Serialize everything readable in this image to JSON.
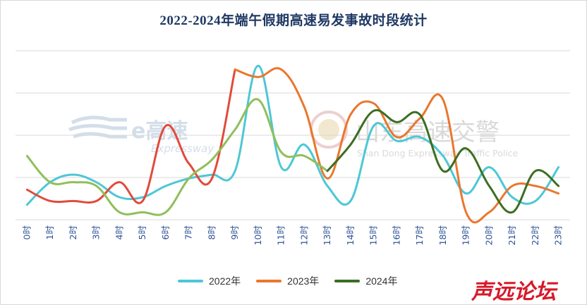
{
  "chart_data": {
    "type": "line",
    "title": "2022-2024年端午假期高速易发事故时段统计",
    "categories": [
      "0时",
      "1时",
      "2时",
      "3时",
      "4时",
      "5时",
      "6时",
      "7时",
      "8时",
      "9时",
      "10时",
      "11时",
      "12时",
      "13时",
      "14时",
      "15时",
      "16时",
      "17时",
      "18时",
      "19时",
      "20时",
      "21时",
      "22时",
      "23时"
    ],
    "series": [
      {
        "name": "2022年",
        "color": "#4dc7d6",
        "values": [
          0.4,
          1.0,
          1.2,
          1.0,
          0.6,
          0.6,
          0.9,
          1.1,
          1.2,
          1.3,
          4.1,
          1.4,
          2.0,
          0.9,
          0.5,
          2.5,
          2.1,
          2.2,
          1.7,
          0.7,
          1.4,
          0.6,
          0.5,
          1.4
        ]
      },
      {
        "name": "2023年",
        "color": "#e24a3b",
        "values": [
          0.8,
          0.5,
          0.5,
          0.5,
          1.0,
          0.5,
          2.5,
          1.5,
          1.1,
          4.0,
          3.8,
          4.0,
          3.0,
          1.1,
          2.8,
          3.1,
          2.2,
          2.7,
          3.2,
          0.2,
          0.2,
          0.9,
          0.9,
          0.7
        ]
      },
      {
        "name": "2024年",
        "color": "#8fbf5a",
        "values": [
          1.7,
          1.0,
          1.0,
          0.9,
          0.2,
          0.2,
          0.2,
          1.1,
          1.6,
          2.4,
          3.2,
          1.8,
          1.7,
          1.3,
          2.0,
          2.9,
          2.6,
          2.8,
          1.3,
          1.9,
          0.9,
          0.2,
          1.3,
          0.9
        ]
      }
    ],
    "ylim": [
      0,
      4.5
    ],
    "grid": true,
    "legend_position": "bottom"
  },
  "colors": {
    "title": "#1f3864",
    "tick": "#2f5496",
    "grid": "#d9d9d9",
    "series_2024_late": "#3c6e23"
  },
  "watermarks": {
    "expressway_cn": "e高速",
    "expressway_en": "Expressway",
    "police_cn": "山东高速交警",
    "police_en": "Shan Dong Expressway Traffic Police",
    "forum_logo": "声远论坛"
  }
}
